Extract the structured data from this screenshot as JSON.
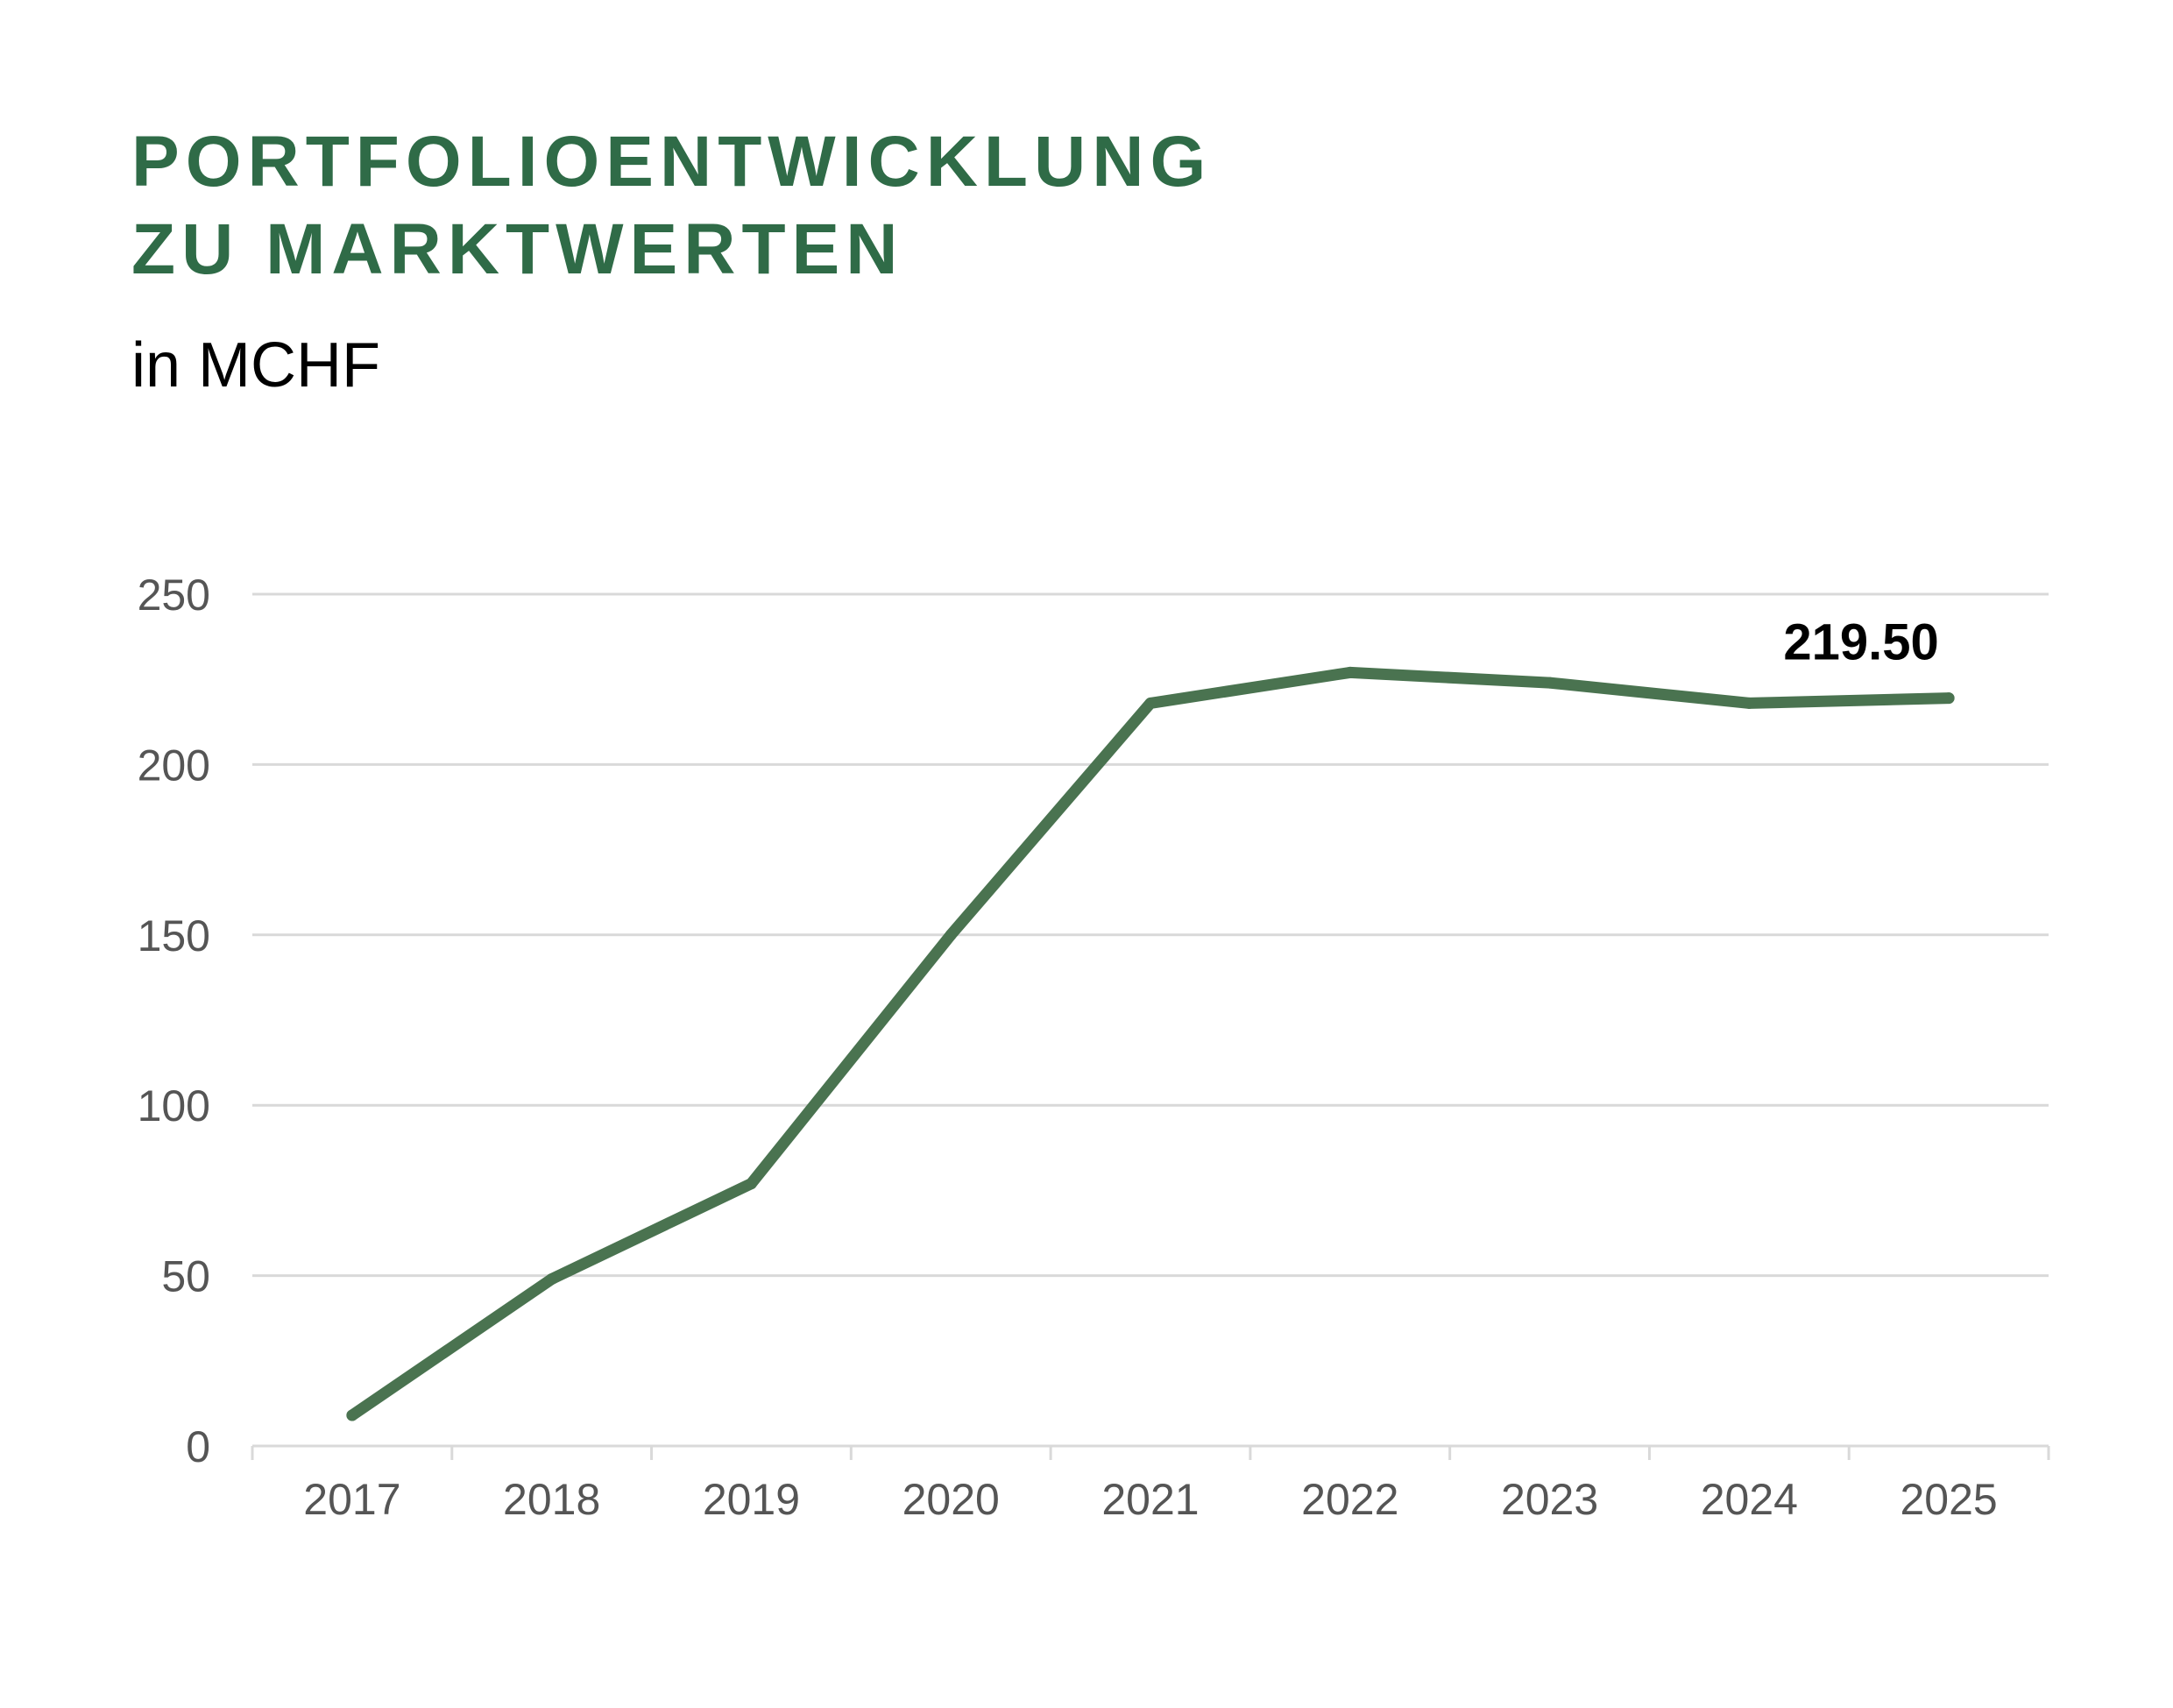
{
  "title_lines": [
    "PORTFOLIOENTWICKLUNG",
    "ZU MARKTWERTEN"
  ],
  "subtitle": "in MCHF",
  "colors": {
    "title": "#2f6b47",
    "line": "#4a7350",
    "grid": "#d9d9d9",
    "tick_text": "#555555",
    "label_text": "#000000"
  },
  "chart_data": {
    "type": "line",
    "categories": [
      "2017",
      "2018",
      "2019",
      "2020",
      "2021",
      "2022",
      "2023",
      "2024",
      "2025"
    ],
    "values": [
      9,
      49,
      77,
      150,
      218,
      227,
      224,
      218,
      219.5
    ],
    "yticks": [
      0,
      50,
      100,
      150,
      200,
      250
    ],
    "ylim": [
      0,
      250
    ],
    "grid": true,
    "data_labels": [
      {
        "category": "2025",
        "text": "219.50"
      }
    ]
  }
}
